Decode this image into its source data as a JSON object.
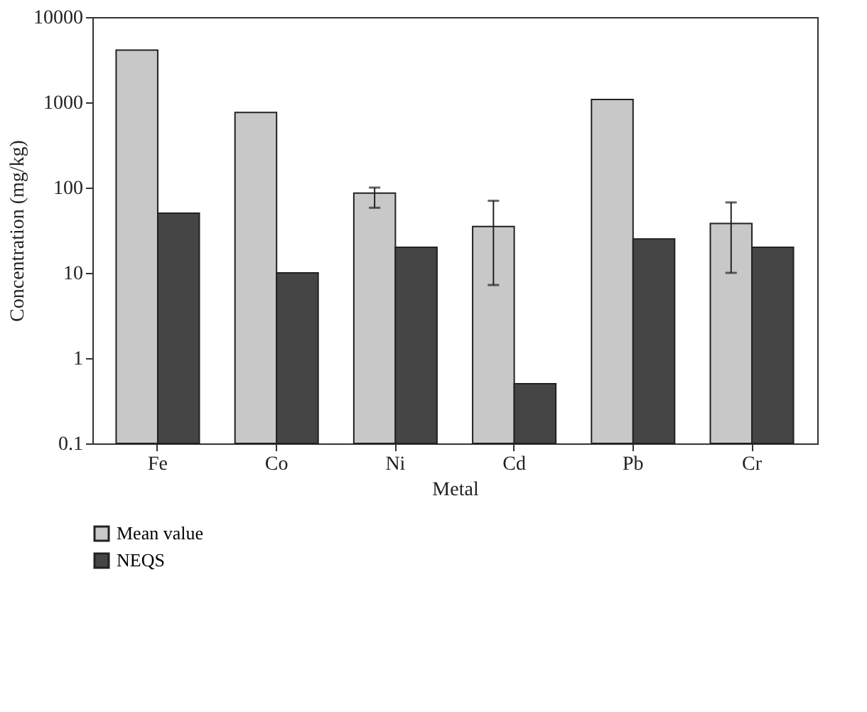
{
  "chart_data": {
    "type": "bar",
    "xlabel": "Metal",
    "ylabel": "Concentration (mg/kg)",
    "categories": [
      "Fe",
      "Co",
      "Ni",
      "Cd",
      "Pb",
      "Cr"
    ],
    "series": [
      {
        "name": "Mean value",
        "color": "#c8c8c8",
        "values": [
          4100,
          760,
          86,
          35,
          1080,
          38
        ],
        "errors": [
          null,
          null,
          [
            58,
            100
          ],
          [
            7.2,
            70
          ],
          null,
          [
            10,
            67
          ]
        ]
      },
      {
        "name": "NEQS",
        "color": "#454545",
        "values": [
          50,
          10,
          20,
          0.5,
          25,
          20
        ]
      }
    ],
    "log": true,
    "ylim": [
      0.1,
      10000
    ],
    "yticks": [
      0.1,
      1,
      10,
      100,
      1000,
      10000
    ],
    "grid": false,
    "legend": "bottom left"
  }
}
